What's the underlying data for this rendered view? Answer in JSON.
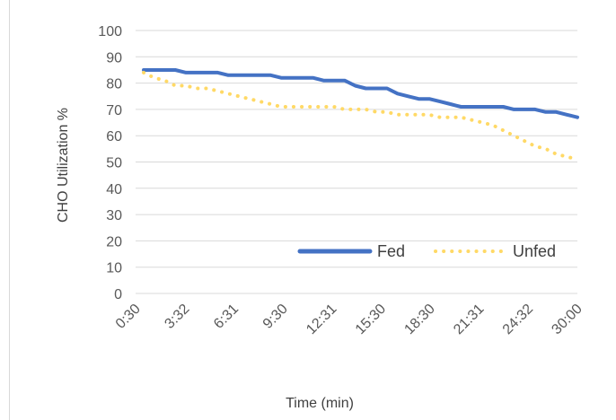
{
  "chart_data": {
    "type": "line",
    "title": "",
    "xlabel": "Time (min)",
    "ylabel": "CHO  Utilization %",
    "ylim": [
      0,
      100
    ],
    "y_ticks": [
      0,
      10,
      20,
      30,
      40,
      50,
      60,
      70,
      80,
      90,
      100
    ],
    "x_tick_labels": [
      "0:30",
      "3:32",
      "6:31",
      "9:30",
      "12:31",
      "15:30",
      "18:30",
      "21:31",
      "24:32",
      "30:00"
    ],
    "grid": true,
    "legend_position": "inside-lower-right",
    "series": [
      {
        "name": "Fed",
        "color": "#4472c4",
        "style": "solid",
        "values": [
          85,
          85,
          85,
          85,
          84,
          84,
          84,
          84,
          83,
          83,
          83,
          83,
          83,
          82,
          82,
          82,
          82,
          81,
          81,
          81,
          79,
          78,
          78,
          78,
          76,
          75,
          74,
          74,
          73,
          72,
          71,
          71,
          71,
          71,
          71,
          70,
          70,
          70,
          69,
          69,
          68,
          67
        ]
      },
      {
        "name": "Unfed",
        "color": "#ffd966",
        "style": "dotted",
        "values": [
          84,
          82,
          81,
          79,
          79,
          78,
          78,
          77,
          76,
          75,
          74,
          73,
          72,
          71,
          71,
          71,
          71,
          71,
          71,
          70,
          70,
          70,
          69,
          69,
          68,
          68,
          68,
          68,
          67,
          67,
          67,
          66,
          65,
          64,
          62,
          60,
          58,
          56,
          55,
          53,
          52,
          51
        ]
      }
    ]
  }
}
